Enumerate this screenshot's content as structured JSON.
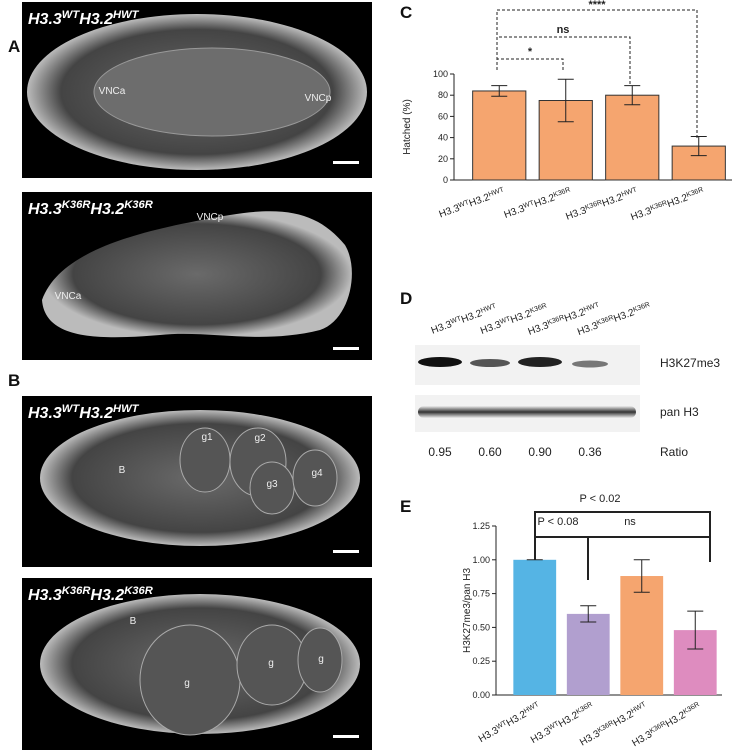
{
  "panel_labels": [
    "A",
    "B",
    "C",
    "D",
    "E"
  ],
  "images": [
    {
      "title": [
        {
          "text": "H3.3"
        },
        {
          "sup": "WT"
        },
        {
          "text": "H3.2"
        },
        {
          "sup": "HWT"
        }
      ],
      "labels": [
        "VNCa",
        "VNCp"
      ]
    },
    {
      "title": [
        {
          "text": "H3.3"
        },
        {
          "sup": "K36R"
        },
        {
          "text": "H3.2"
        },
        {
          "sup": "K36R"
        }
      ],
      "labels": [
        "VNCp",
        "VNCa"
      ]
    },
    {
      "title": [
        {
          "text": "H3.3"
        },
        {
          "sup": "WT"
        },
        {
          "text": "H3.2"
        },
        {
          "sup": "HWT"
        }
      ],
      "labels": [
        "B",
        "g1",
        "g2",
        "g3",
        "g4"
      ]
    },
    {
      "title": [
        {
          "text": "H3.3"
        },
        {
          "sup": "K36R"
        },
        {
          "text": "H3.2"
        },
        {
          "sup": "K36R"
        }
      ],
      "labels": [
        "B",
        "g",
        "g",
        "g"
      ]
    }
  ],
  "chart_data": [
    {
      "type": "bar",
      "y_label": "Hatched (%)",
      "categories": [
        [
          {
            "text": "H3.3"
          },
          {
            "sup": "WT"
          },
          {
            "text": "H3.2"
          },
          {
            "sup": "HWT"
          }
        ],
        [
          {
            "text": "H3.3"
          },
          {
            "sup": "WT"
          },
          {
            "text": "H3.2"
          },
          {
            "sup": "K36R"
          }
        ],
        [
          {
            "text": "H3.3"
          },
          {
            "sup": "K36R"
          },
          {
            "text": "H3.2"
          },
          {
            "sup": "HWT"
          }
        ],
        [
          {
            "text": "H3.3"
          },
          {
            "sup": "K36R"
          },
          {
            "text": "H3.2"
          },
          {
            "sup": "K36R"
          }
        ]
      ],
      "values": [
        84,
        75,
        80,
        32
      ],
      "errors": [
        5,
        20,
        9,
        9
      ],
      "color": "#f5a56f",
      "ylim": [
        0,
        100
      ],
      "yticks": [
        0,
        20,
        40,
        60,
        80,
        100
      ],
      "annotations": [
        "****",
        "ns",
        "*"
      ]
    },
    {
      "type": "bar",
      "y_label": "H3K27me3/pan H3",
      "categories": [
        [
          {
            "text": "H3.3"
          },
          {
            "sup": "WT"
          },
          {
            "text": "H3.2"
          },
          {
            "sup": "HWT"
          }
        ],
        [
          {
            "text": "H3.3"
          },
          {
            "sup": "WT"
          },
          {
            "text": "H3.2"
          },
          {
            "sup": "K36R"
          }
        ],
        [
          {
            "text": "H3.3"
          },
          {
            "sup": "K36R"
          },
          {
            "text": "H3.2"
          },
          {
            "sup": "HWT"
          }
        ],
        [
          {
            "text": "H3.3"
          },
          {
            "sup": "K36R"
          },
          {
            "text": "H3.2"
          },
          {
            "sup": "K36R"
          }
        ]
      ],
      "values": [
        1.0,
        0.6,
        0.88,
        0.48
      ],
      "errors": [
        0,
        0.06,
        0.12,
        0.14
      ],
      "colors": [
        "#55b4e4",
        "#b19fcf",
        "#f5a56f",
        "#de8cbf"
      ],
      "ylim": [
        0,
        1.25
      ],
      "yticks": [
        {
          "value": 0,
          "label": "0.00"
        },
        {
          "value": 0.25,
          "label": "0.25"
        },
        {
          "value": 0.5,
          "label": "0.50"
        },
        {
          "value": 0.75,
          "label": "0.75"
        },
        {
          "value": 1,
          "label": "1.00"
        },
        {
          "value": 1.25,
          "label": "1.25"
        }
      ],
      "annotations": [
        "P < 0.08",
        "ns",
        "P < 0.02"
      ]
    }
  ],
  "blot": {
    "lanes": [
      [
        {
          "text": "H3.3"
        },
        {
          "sup": "WT"
        },
        {
          "text": "H3.2"
        },
        {
          "sup": "HWT"
        }
      ],
      [
        {
          "text": "H3.3"
        },
        {
          "sup": "WT"
        },
        {
          "text": "H3.2"
        },
        {
          "sup": "K36R"
        }
      ],
      [
        {
          "text": "H3.3"
        },
        {
          "sup": "K36R"
        },
        {
          "text": "H3.2"
        },
        {
          "sup": "HWT"
        }
      ],
      [
        {
          "text": "H3.3"
        },
        {
          "sup": "K36R"
        },
        {
          "text": "H3.2"
        },
        {
          "sup": "K36R"
        }
      ]
    ],
    "bands": [
      "H3K27me3",
      "pan H3"
    ],
    "ratios": [
      "0.95",
      "0.60",
      "0.90",
      "0.36"
    ],
    "ratio_label": "Ratio"
  }
}
